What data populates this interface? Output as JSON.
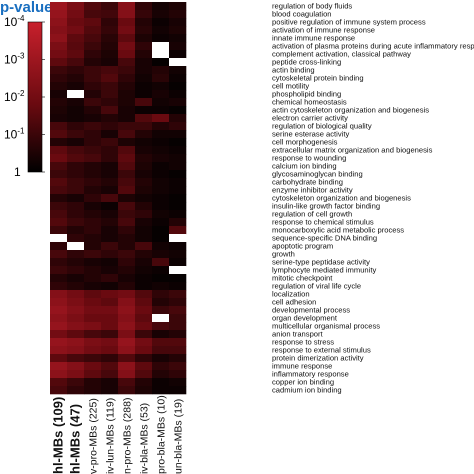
{
  "colorbar": {
    "title": "p-value",
    "ticks": [
      {
        "exp": -4,
        "label": "10",
        "sup": "-4"
      },
      {
        "exp": -3,
        "label": "10",
        "sup": "-3"
      },
      {
        "exp": -2,
        "label": "10",
        "sup": "-2"
      },
      {
        "exp": -1,
        "label": "10",
        "sup": "-1"
      },
      {
        "exp": 0,
        "label": "1",
        "sup": ""
      }
    ],
    "colors": {
      "high": "#c8202c",
      "mid": "#6a0a10",
      "low": "#000000"
    }
  },
  "chart_data": {
    "type": "heatmap",
    "value_meaning": "-log10(p-value)",
    "log_scale": true,
    "zlim": [
      0,
      4
    ],
    "columns": [
      {
        "label": "hl-MBs (109)",
        "bold": true
      },
      {
        "label": "hl-MBs (47)",
        "bold": true
      },
      {
        "label": "v-pro-MBs (225)",
        "bold": false
      },
      {
        "label": "iv-lun-MBs (119)",
        "bold": false
      },
      {
        "label": "n-pro-MBs (288)",
        "bold": false
      },
      {
        "label": "iv-bla-MBs (53)",
        "bold": false
      },
      {
        "label": "pro-bla-MBs (10)",
        "bold": false
      },
      {
        "label": "un-bla-MBs (19)",
        "bold": false
      }
    ],
    "rows": [
      "regulation of body fluids",
      "blood coagulation",
      "positive regulation of immune system process",
      "activation of immune response",
      "innate immune response",
      "activation of plasma proteins during acute inflammatory response",
      "complement activation, classical pathway",
      "peptide cross-linking",
      "actin binding",
      "cytoskeletal protein binding",
      "cell motility",
      "phospholipid binding",
      "chemical homeostasis",
      "actin cytoskeleton organization and biogenesis",
      "electron carrier activity",
      "regulation of biological quality",
      "serine esterase activity",
      "cell morphogenesis",
      "extracellular matrix organization and biogenesis",
      "response to wounding",
      "calcium ion binding",
      "glycosaminoglycan binding",
      "carbohydrate binding",
      "enzyme inhibitor activity",
      "cytoskeleton organization and biogenesis",
      "insulin-like growth factor binding",
      "regulation of cell growth",
      "response to chemical stimulus",
      "monocarboxylic acid metabolic process",
      "sequence-specific DNA binding",
      "apoptotic program",
      "growth",
      "serine-type peptidase activity",
      "lymphocyte mediated immunity",
      "mitotic checkpoint",
      "regulation of viral life cycle",
      "localization",
      "cell adhesion",
      "developmental process",
      "organ development",
      "multicellular organismal process",
      "anion transport",
      "response to stress",
      "response to external stimulus",
      "protein dimerization activity",
      "immune response",
      "inflammatory response",
      "copper ion binding",
      "cadmium ion binding"
    ],
    "values": [
      [
        3.0,
        2.2,
        1.4,
        1.0,
        2.5,
        0.8,
        0.3,
        0.5
      ],
      [
        2.8,
        2.0,
        1.2,
        1.1,
        2.4,
        0.9,
        0.4,
        0.6
      ],
      [
        2.6,
        1.8,
        1.6,
        0.8,
        1.8,
        0.6,
        0.2,
        0.4
      ],
      [
        2.4,
        2.0,
        1.4,
        0.9,
        2.0,
        0.7,
        0.3,
        0.5
      ],
      [
        2.6,
        1.6,
        1.2,
        0.7,
        1.6,
        0.5,
        0.2,
        0.3
      ],
      [
        2.2,
        1.5,
        1.0,
        0.6,
        2.0,
        0.8,
        null,
        0.4
      ],
      [
        2.0,
        1.6,
        0.8,
        0.5,
        1.8,
        0.6,
        null,
        0.2
      ],
      [
        1.6,
        1.2,
        0.6,
        0.4,
        1.2,
        0.4,
        0.1,
        null
      ],
      [
        1.0,
        0.8,
        1.0,
        1.2,
        1.0,
        0.4,
        0.6,
        0.3
      ],
      [
        0.8,
        0.6,
        1.0,
        1.4,
        0.8,
        0.3,
        0.7,
        0.2
      ],
      [
        0.6,
        0.4,
        0.8,
        1.0,
        0.6,
        0.2,
        0.3,
        0.1
      ],
      [
        0.4,
        null,
        0.6,
        1.0,
        0.5,
        0.2,
        0.4,
        0.2
      ],
      [
        0.6,
        0.4,
        1.0,
        0.8,
        0.5,
        1.2,
        0.3,
        0.4
      ],
      [
        0.5,
        0.3,
        0.6,
        1.2,
        0.4,
        0.2,
        0.2,
        0.1
      ],
      [
        0.4,
        0.3,
        0.4,
        0.6,
        0.4,
        1.4,
        1.8,
        0.6
      ],
      [
        1.2,
        0.8,
        1.0,
        0.8,
        1.0,
        1.0,
        0.6,
        0.8
      ],
      [
        1.4,
        1.0,
        0.8,
        0.4,
        1.2,
        0.6,
        0.3,
        0.3
      ],
      [
        0.6,
        0.4,
        0.8,
        1.0,
        0.5,
        0.3,
        0.2,
        0.1
      ],
      [
        1.6,
        1.2,
        1.0,
        0.8,
        1.4,
        0.4,
        0.3,
        0.2
      ],
      [
        1.8,
        1.4,
        1.2,
        0.8,
        1.6,
        0.6,
        0.4,
        0.3
      ],
      [
        1.2,
        0.8,
        0.6,
        0.4,
        1.4,
        0.5,
        0.2,
        0.3
      ],
      [
        1.0,
        0.8,
        0.6,
        0.4,
        1.0,
        0.4,
        0.2,
        0.1
      ],
      [
        1.4,
        1.0,
        0.8,
        0.6,
        1.2,
        0.6,
        0.3,
        0.2
      ],
      [
        1.2,
        1.0,
        0.6,
        0.4,
        1.4,
        0.5,
        0.3,
        0.2
      ],
      [
        0.6,
        0.4,
        0.8,
        1.2,
        0.5,
        0.3,
        0.2,
        0.1
      ],
      [
        1.0,
        0.8,
        0.4,
        0.2,
        1.2,
        0.6,
        0.2,
        0.1
      ],
      [
        1.2,
        0.8,
        0.6,
        0.4,
        1.0,
        0.8,
        0.3,
        0.2
      ],
      [
        1.4,
        1.0,
        0.8,
        0.6,
        1.2,
        0.4,
        0.2,
        0.6
      ],
      [
        1.0,
        0.6,
        0.8,
        0.4,
        0.8,
        0.3,
        0.1,
        1.4
      ],
      [
        null,
        0.8,
        0.6,
        0.4,
        0.6,
        0.3,
        0.1,
        null
      ],
      [
        0.8,
        null,
        0.6,
        1.0,
        0.6,
        1.2,
        0.3,
        0.2
      ],
      [
        1.2,
        0.8,
        1.0,
        0.8,
        1.0,
        0.6,
        0.4,
        0.3
      ],
      [
        0.8,
        0.6,
        0.4,
        0.3,
        0.8,
        0.4,
        1.2,
        0.2
      ],
      [
        1.0,
        0.8,
        0.6,
        0.4,
        0.6,
        0.3,
        0.2,
        null
      ],
      [
        0.6,
        0.4,
        0.6,
        0.8,
        0.4,
        0.2,
        0.1,
        0.1
      ],
      [
        0.8,
        0.6,
        0.4,
        0.3,
        0.6,
        0.2,
        0.3,
        0.2
      ],
      [
        2.4,
        2.0,
        1.6,
        1.8,
        2.0,
        1.4,
        0.8,
        1.0
      ],
      [
        2.6,
        2.2,
        1.8,
        1.6,
        2.4,
        1.6,
        0.6,
        0.8
      ],
      [
        2.8,
        2.4,
        2.0,
        2.0,
        2.6,
        1.8,
        1.0,
        1.2
      ],
      [
        2.6,
        2.2,
        1.8,
        1.8,
        2.4,
        1.6,
        null,
        1.0
      ],
      [
        2.8,
        2.4,
        2.2,
        1.8,
        2.6,
        1.8,
        1.2,
        1.0
      ],
      [
        2.0,
        1.6,
        1.2,
        1.0,
        2.2,
        1.0,
        0.4,
        0.6
      ],
      [
        2.8,
        2.6,
        2.2,
        2.0,
        2.8,
        2.0,
        1.4,
        1.4
      ],
      [
        2.6,
        2.4,
        2.0,
        1.8,
        2.6,
        1.8,
        1.2,
        1.2
      ],
      [
        1.6,
        1.2,
        1.0,
        0.8,
        1.4,
        0.8,
        0.4,
        0.6
      ],
      [
        2.8,
        2.4,
        1.8,
        1.4,
        2.6,
        1.6,
        0.8,
        1.0
      ],
      [
        2.6,
        2.2,
        1.6,
        1.2,
        2.4,
        1.4,
        0.6,
        0.8
      ],
      [
        1.4,
        1.0,
        0.6,
        0.4,
        1.2,
        0.6,
        0.2,
        0.3
      ],
      [
        1.2,
        0.8,
        0.6,
        0.4,
        1.0,
        0.5,
        0.2,
        0.2
      ]
    ]
  }
}
